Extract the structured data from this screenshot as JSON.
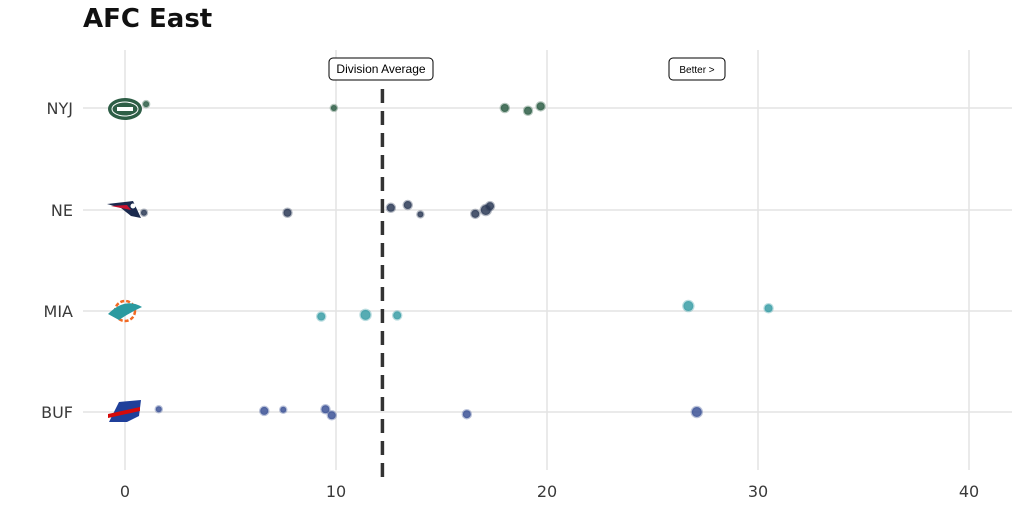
{
  "chart_data": {
    "type": "scatter",
    "title": "AFC East",
    "xlabel": "",
    "ylabel": "",
    "xlim": [
      -1,
      42
    ],
    "x_ticks": [
      "0",
      "10",
      "20",
      "30",
      "40"
    ],
    "categories": [
      "NYJ",
      "NE",
      "MIA",
      "BUF"
    ],
    "grid": true,
    "series": [
      {
        "team": "NYJ",
        "color": "#2e5e46",
        "logo": "jets-logo",
        "points": [
          [
            1.0,
            0.07,
            "small"
          ],
          [
            9.9,
            0.0,
            "small"
          ],
          [
            18.0,
            0.0,
            "medium"
          ],
          [
            19.1,
            -0.05,
            "medium"
          ],
          [
            19.7,
            0.03,
            "medium"
          ]
        ]
      },
      {
        "team": "NE",
        "color": "#2b3a56",
        "logo": "patriots-logo",
        "points": [
          [
            0.9,
            -0.05,
            "small"
          ],
          [
            7.7,
            -0.05,
            "medium"
          ],
          [
            12.6,
            0.04,
            "medium"
          ],
          [
            13.4,
            0.09,
            "medium"
          ],
          [
            14.0,
            -0.08,
            "small"
          ],
          [
            16.6,
            -0.07,
            "medium"
          ],
          [
            17.1,
            0.0,
            "large"
          ],
          [
            17.3,
            0.07,
            "medium"
          ]
        ]
      },
      {
        "team": "MIA",
        "color": "#3a9ea6",
        "logo": "dolphins-logo",
        "points": [
          [
            9.3,
            -0.1,
            "medium"
          ],
          [
            11.4,
            -0.07,
            "large"
          ],
          [
            12.9,
            -0.08,
            "medium"
          ],
          [
            26.7,
            0.09,
            "large"
          ],
          [
            30.5,
            0.05,
            "medium"
          ]
        ]
      },
      {
        "team": "BUF",
        "color": "#3c5296",
        "logo": "bills-logo",
        "points": [
          [
            1.6,
            0.05,
            "small"
          ],
          [
            6.6,
            0.02,
            "medium"
          ],
          [
            7.5,
            0.04,
            "small"
          ],
          [
            9.5,
            0.05,
            "medium"
          ],
          [
            9.8,
            -0.06,
            "medium"
          ],
          [
            16.2,
            -0.04,
            "medium"
          ],
          [
            27.1,
            0.0,
            "large"
          ]
        ]
      }
    ],
    "reference_line": {
      "x": 12.2,
      "label": "Division Average",
      "style": "dashed"
    },
    "annotations": [
      {
        "text": "Better >",
        "x": 27.0
      }
    ]
  }
}
